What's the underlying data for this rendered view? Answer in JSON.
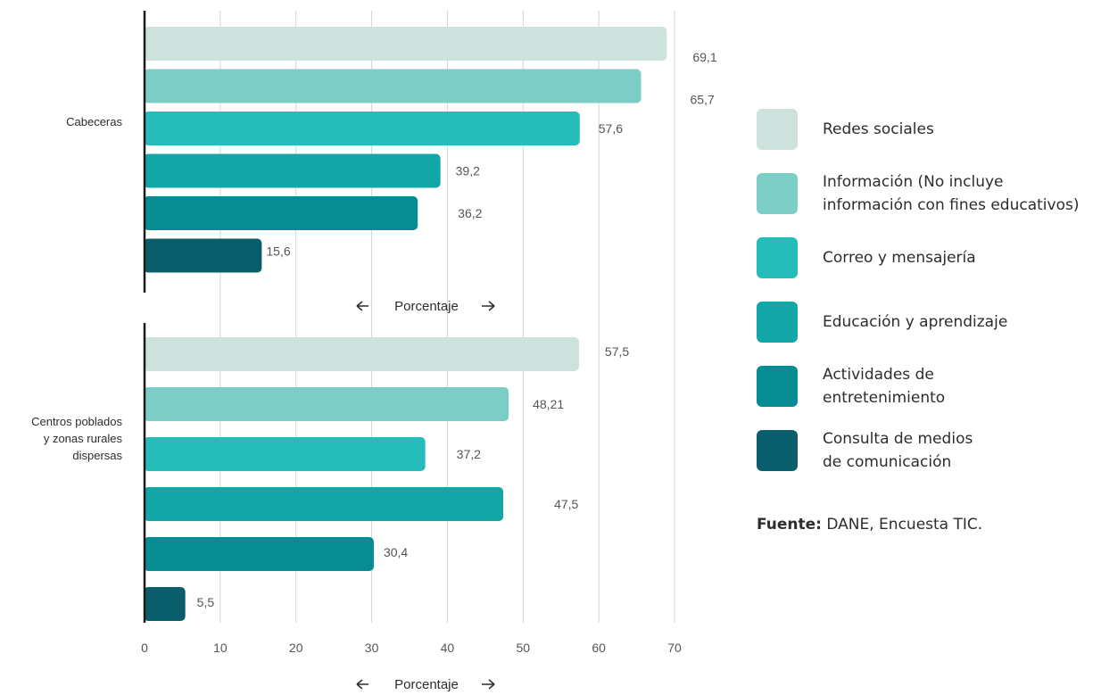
{
  "chart_data": {
    "type": "bar",
    "orientation": "horizontal",
    "xlabel": "Porcentaje",
    "xlim": [
      0,
      70
    ],
    "xticks": [
      0,
      10,
      20,
      30,
      40,
      50,
      60,
      70
    ],
    "grid": true,
    "legend_position": "right",
    "groups": [
      {
        "name": "Cabeceras",
        "values": [
          69.1,
          65.7,
          57.6,
          39.2,
          36.2,
          15.6
        ],
        "labels": [
          "69,1",
          "65,7",
          "57,6",
          "39,2",
          "36,2",
          "15,6"
        ]
      },
      {
        "name": "Centros poblados y zonas rurales dispersas",
        "values": [
          57.5,
          48.21,
          37.2,
          47.5,
          30.4,
          5.5
        ],
        "labels": [
          "57,5",
          "48,21",
          "37,2",
          "47,5",
          "30,4",
          "5,5"
        ]
      }
    ],
    "series": [
      {
        "name": "Redes sociales",
        "color": "#cde1dd"
      },
      {
        "name": "Información (No incluye información con fines educativos)",
        "color": "#7dcdc7"
      },
      {
        "name": "Correo y mensajería",
        "color": "#25bcb9"
      },
      {
        "name": "Educación y aprendizaje",
        "color": "#12a6a7"
      },
      {
        "name": "Actividades de entretenimiento",
        "color": "#068c92"
      },
      {
        "name": "Consulta de medios de comunicación",
        "color": "#0a5e6b"
      }
    ]
  },
  "source": {
    "bold": "Fuente:",
    "text": " DANE, Encuesta TIC."
  }
}
